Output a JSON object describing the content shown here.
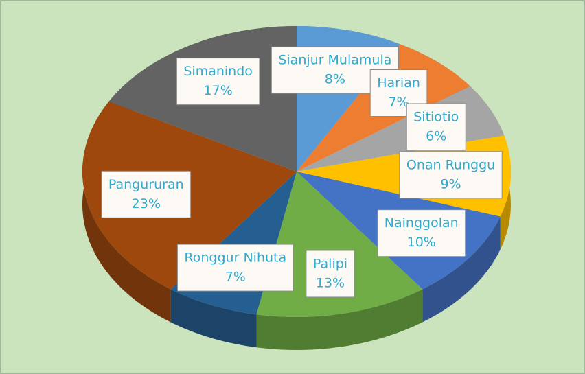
{
  "chart_data": {
    "type": "pie",
    "categories": [
      "Sianjur Mulamula",
      "Harian",
      "Sitiotio",
      "Onan Runggu",
      "Nainggolan",
      "Palipi",
      "Ronggur Nihuta",
      "Pangururan",
      "Simanindo"
    ],
    "values": [
      8,
      7,
      6,
      9,
      10,
      13,
      7,
      23,
      17
    ],
    "value_labels": [
      "8%",
      "7%",
      "6%",
      "9%",
      "10%",
      "13%",
      "7%",
      "23%",
      "17%"
    ],
    "colors": [
      "#5b9bd5",
      "#ed7d31",
      "#a5a5a5",
      "#ffc000",
      "#4472c4",
      "#70ad47",
      "#255e91",
      "#9e480e",
      "#636363"
    ]
  }
}
